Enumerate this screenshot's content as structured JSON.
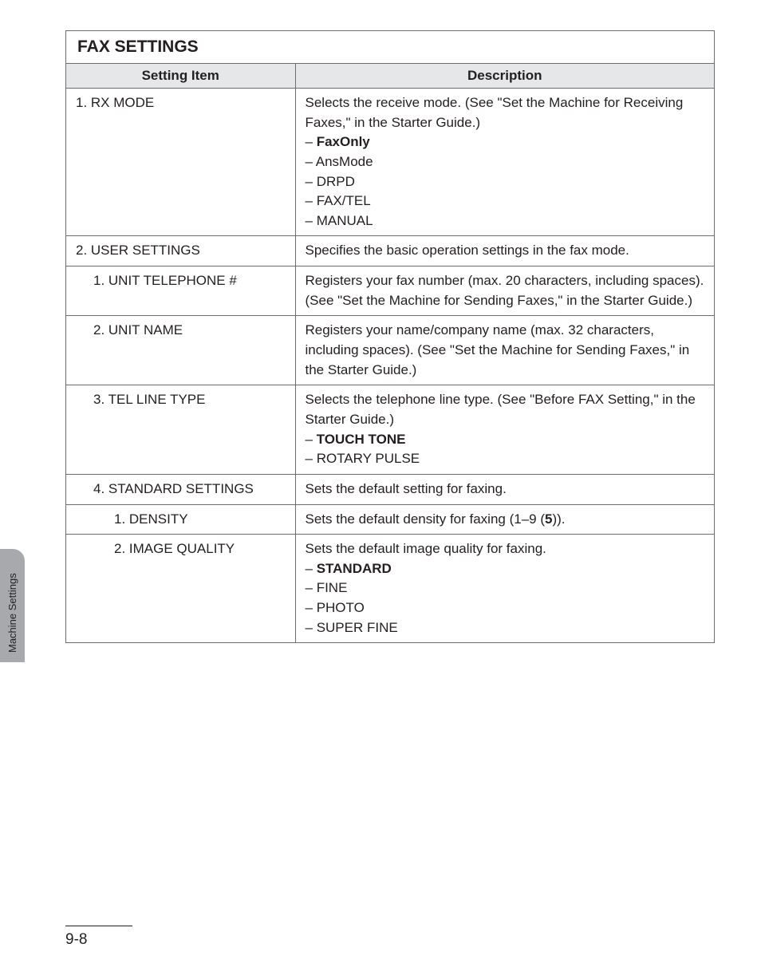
{
  "sidebar": {
    "label": "Machine Settings"
  },
  "section": {
    "title": "FAX SETTINGS"
  },
  "table": {
    "header": {
      "item": "Setting Item",
      "desc": "Description"
    },
    "rows": [
      {
        "indent": 0,
        "item": "1.  RX MODE",
        "desc": "Selects the receive mode. (See \"Set the Machine for Receiving Faxes,\" in the Starter Guide.)",
        "options": [
          {
            "text": "FaxOnly",
            "bold": true
          },
          {
            "text": "AnsMode",
            "bold": false
          },
          {
            "text": "DRPD",
            "bold": false
          },
          {
            "text": "FAX/TEL",
            "bold": false
          },
          {
            "text": "MANUAL",
            "bold": false
          }
        ]
      },
      {
        "indent": 0,
        "item": "2.  USER SETTINGS",
        "desc": "Specifies the basic operation settings in the fax mode."
      },
      {
        "indent": 1,
        "item": "1.  UNIT TELEPHONE #",
        "desc": "Registers your fax number (max. 20 characters, including spaces). (See \"Set the Machine for Sending Faxes,\" in the Starter Guide.)"
      },
      {
        "indent": 1,
        "item": "2.  UNIT NAME",
        "desc": "Registers your name/company name (max. 32 characters, including spaces). (See \"Set the Machine for Sending Faxes,\" in the Starter Guide.)"
      },
      {
        "indent": 1,
        "item": "3.  TEL LINE TYPE",
        "desc": "Selects the telephone line type. (See \"Before FAX Setting,\" in the Starter Guide.)",
        "options": [
          {
            "text": "TOUCH TONE",
            "bold": true
          },
          {
            "text": "ROTARY PULSE",
            "bold": false
          }
        ]
      },
      {
        "indent": 1,
        "item": "4.  STANDARD SETTINGS",
        "desc": "Sets the default setting for faxing."
      },
      {
        "indent": 2,
        "item": "1.  DENSITY",
        "desc_html": "Sets the default density for faxing (1–9 (<b>5</b>))."
      },
      {
        "indent": 2,
        "item": "2.  IMAGE QUALITY",
        "desc": "Sets the default image quality for faxing.",
        "options": [
          {
            "text": "STANDARD",
            "bold": true
          },
          {
            "text": "FINE",
            "bold": false
          },
          {
            "text": "PHOTO",
            "bold": false
          },
          {
            "text": "SUPER FINE",
            "bold": false
          }
        ]
      }
    ]
  },
  "footer": {
    "page_number": "9-8"
  }
}
